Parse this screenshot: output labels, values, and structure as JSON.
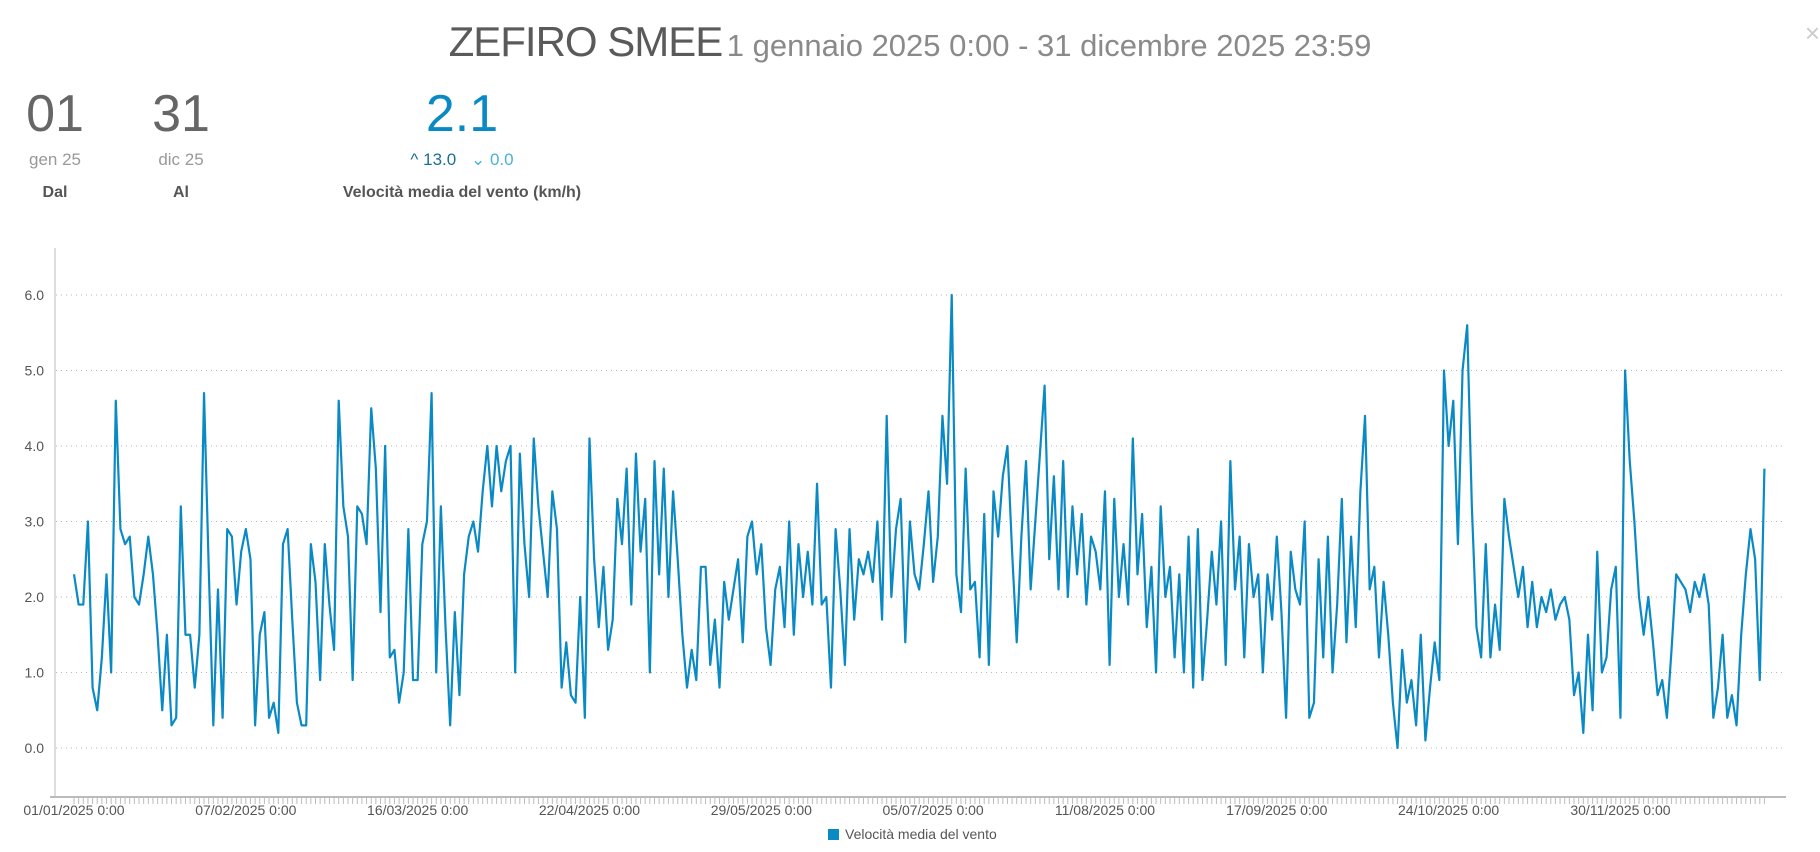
{
  "header": {
    "station": "ZEFIRO SMEE",
    "range": "1 gennaio 2025 0:00 - 31 dicembre 2025 23:59",
    "close_icon": "×"
  },
  "stats": {
    "from": {
      "day": "01",
      "month": "gen 25",
      "label": "Dal"
    },
    "to": {
      "day": "31",
      "month": "dic 25",
      "label": "Al"
    },
    "wind": {
      "value": "2.1",
      "max_icon": "^",
      "max": "13.0",
      "min_icon": "⌄",
      "min": "0.0",
      "label": "Velocità media del vento (km/h)"
    }
  },
  "colors": {
    "series": "#0a8ac4",
    "grid": "#b5b5b5"
  },
  "chart_data": {
    "type": "line",
    "title": "",
    "xlabel": "",
    "ylabel": "",
    "ylim": [
      0,
      6.5
    ],
    "yticks": [
      "0.0",
      "1.0",
      "2.0",
      "3.0",
      "4.0",
      "5.0",
      "6.0"
    ],
    "x_start": "01/01/2025",
    "x_unit": "day",
    "xtick_labels": [
      "01/01/2025 0:00",
      "07/02/2025 0:00",
      "16/03/2025 0:00",
      "22/04/2025 0:00",
      "29/05/2025 0:00",
      "05/07/2025 0:00",
      "11/08/2025 0:00",
      "17/09/2025 0:00",
      "24/10/2025 0:00",
      "30/11/2025 0:00"
    ],
    "xtick_step_days": 37,
    "grid": true,
    "legend": "bottom-center",
    "series": [
      {
        "name": "Velocità media del vento",
        "values": [
          2.3,
          1.9,
          1.9,
          3.0,
          0.8,
          0.5,
          1.2,
          2.3,
          1.0,
          4.6,
          2.9,
          2.7,
          2.8,
          2.0,
          1.9,
          2.3,
          2.8,
          2.3,
          1.5,
          0.5,
          1.5,
          0.3,
          0.4,
          3.2,
          1.5,
          1.5,
          0.8,
          1.5,
          4.7,
          2.4,
          0.3,
          2.1,
          0.4,
          2.9,
          2.8,
          1.9,
          2.6,
          2.9,
          2.5,
          0.3,
          1.5,
          1.8,
          0.4,
          0.6,
          0.2,
          2.7,
          2.9,
          1.7,
          0.6,
          0.3,
          0.3,
          2.7,
          2.2,
          0.9,
          2.7,
          1.9,
          1.3,
          4.6,
          3.2,
          2.8,
          0.9,
          3.2,
          3.1,
          2.7,
          4.5,
          3.7,
          1.8,
          4.0,
          1.2,
          1.3,
          0.6,
          1.0,
          2.9,
          0.9,
          0.9,
          2.7,
          3.0,
          4.7,
          1.0,
          3.2,
          1.6,
          0.3,
          1.8,
          0.7,
          2.3,
          2.8,
          3.0,
          2.6,
          3.4,
          4.0,
          3.2,
          4.0,
          3.4,
          3.8,
          4.0,
          1.0,
          3.9,
          2.7,
          2.0,
          4.1,
          3.2,
          2.6,
          2.0,
          3.4,
          2.9,
          0.8,
          1.4,
          0.7,
          0.6,
          2.0,
          0.4,
          4.1,
          2.5,
          1.6,
          2.4,
          1.3,
          1.7,
          3.3,
          2.7,
          3.7,
          1.9,
          3.9,
          2.6,
          3.3,
          1.0,
          3.8,
          2.3,
          3.7,
          2.0,
          3.4,
          2.5,
          1.5,
          0.8,
          1.3,
          0.9,
          2.4,
          2.4,
          1.1,
          1.7,
          0.8,
          2.2,
          1.7,
          2.1,
          2.5,
          1.4,
          2.8,
          3.0,
          2.3,
          2.7,
          1.6,
          1.1,
          2.1,
          2.4,
          1.6,
          3.0,
          1.5,
          2.7,
          2.0,
          2.6,
          1.9,
          3.5,
          1.9,
          2.0,
          0.8,
          2.9,
          2.1,
          1.1,
          2.9,
          1.7,
          2.5,
          2.3,
          2.6,
          2.2,
          3.0,
          1.7,
          4.4,
          2.0,
          2.9,
          3.3,
          1.4,
          3.0,
          2.3,
          2.1,
          2.7,
          3.4,
          2.2,
          2.8,
          4.4,
          3.5,
          6.0,
          2.3,
          1.8,
          3.7,
          2.1,
          2.2,
          1.2,
          3.1,
          1.1,
          3.4,
          2.8,
          3.6,
          4.0,
          2.6,
          1.4,
          2.8,
          3.8,
          2.1,
          3.0,
          3.9,
          4.8,
          2.5,
          3.6,
          2.1,
          3.8,
          2.0,
          3.2,
          2.3,
          3.1,
          1.9,
          2.8,
          2.6,
          2.1,
          3.4,
          1.1,
          3.3,
          2.0,
          2.7,
          1.9,
          4.1,
          2.3,
          3.1,
          1.6,
          2.4,
          1.0,
          3.2,
          2.0,
          2.4,
          1.2,
          2.3,
          1.0,
          2.8,
          0.8,
          2.9,
          0.9,
          1.7,
          2.6,
          1.9,
          3.0,
          1.1,
          3.8,
          2.1,
          2.8,
          1.2,
          2.7,
          2.0,
          2.3,
          1.0,
          2.3,
          1.7,
          2.8,
          1.8,
          0.4,
          2.6,
          2.1,
          1.9,
          3.0,
          0.4,
          0.6,
          2.5,
          1.2,
          2.8,
          1.0,
          1.9,
          3.3,
          1.4,
          2.8,
          1.6,
          3.4,
          4.4,
          2.1,
          2.4,
          1.2,
          2.2,
          1.5,
          0.6,
          0.0,
          1.3,
          0.6,
          0.9,
          0.3,
          1.5,
          0.1,
          0.8,
          1.4,
          0.9,
          5.0,
          4.0,
          4.6,
          2.7,
          5.0,
          5.6,
          3.2,
          1.6,
          1.2,
          2.7,
          1.2,
          1.9,
          1.3,
          3.3,
          2.8,
          2.4,
          2.0,
          2.4,
          1.6,
          2.2,
          1.6,
          2.0,
          1.8,
          2.1,
          1.7,
          1.9,
          2.0,
          1.7,
          0.7,
          1.0,
          0.2,
          1.5,
          0.5,
          2.6,
          1.0,
          1.2,
          2.1,
          2.4,
          0.4,
          5.0,
          3.8,
          3.0,
          2.0,
          1.5,
          2.0,
          1.4,
          0.7,
          0.9,
          0.4,
          1.3,
          2.3,
          2.2,
          2.1,
          1.8,
          2.2,
          2.0,
          2.3,
          1.9,
          0.4,
          0.8,
          1.5,
          0.4,
          0.7,
          0.3,
          1.5,
          2.3,
          2.9,
          2.5,
          0.9,
          3.7
        ]
      }
    ]
  }
}
